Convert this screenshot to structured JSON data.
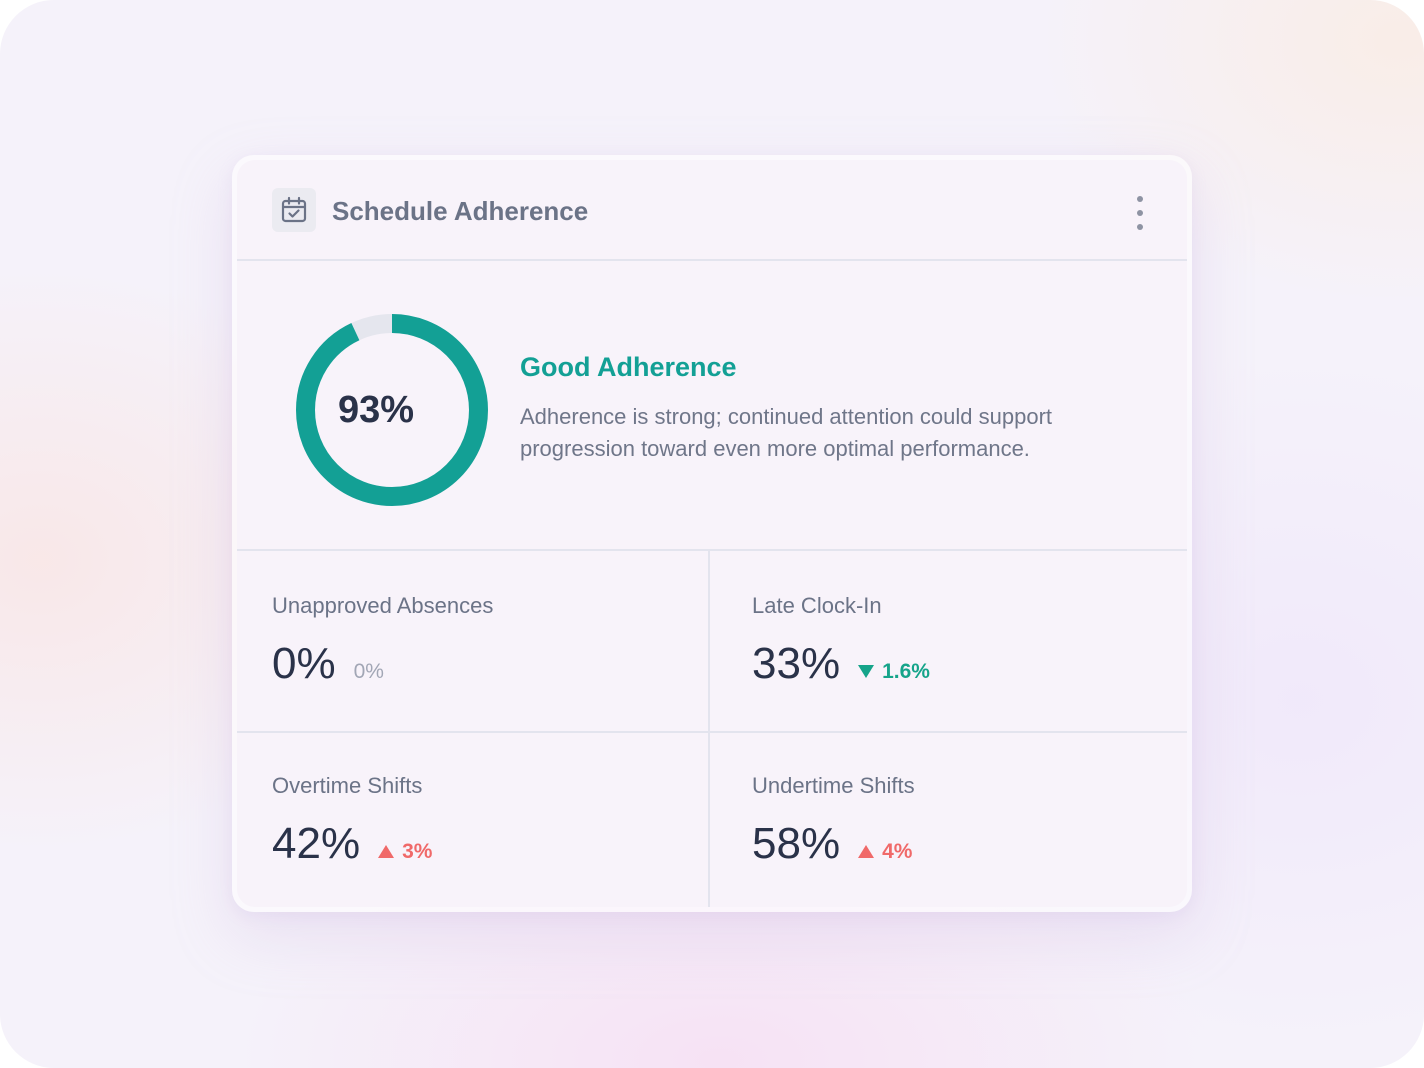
{
  "colors": {
    "accent": "#13a095",
    "donut_track": "#e5e6ee",
    "positive_change": "#16a48a",
    "negative_change": "#f06969",
    "text_primary": "#2a3249",
    "text_secondary": "#6b7387"
  },
  "card": {
    "title": "Schedule Adherence",
    "icon": "calendar-check-icon",
    "menu_icon": "more-vertical-icon"
  },
  "summary": {
    "adherence_value": "93%",
    "adherence_fraction": 0.93,
    "status_title": "Good Adherence",
    "status_description": "Adherence is strong; continued attention could support progression toward even more optimal performance."
  },
  "metrics": [
    {
      "label": "Unapproved Absences",
      "value": "0%",
      "change": "0%",
      "trend": "neutral"
    },
    {
      "label": "Late Clock-In",
      "value": "33%",
      "change": "1.6%",
      "trend": "down"
    },
    {
      "label": "Overtime Shifts",
      "value": "42%",
      "change": "3%",
      "trend": "up"
    },
    {
      "label": "Undertime Shifts",
      "value": "58%",
      "change": "4%",
      "trend": "up"
    }
  ]
}
